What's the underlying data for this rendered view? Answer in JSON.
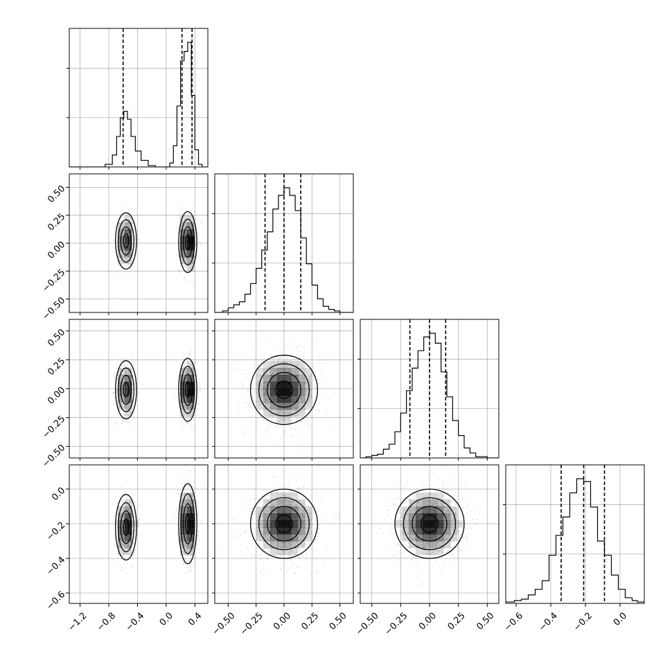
{
  "chart_data": {
    "type": "corner",
    "title": "",
    "n_params": 4,
    "params": [
      {
        "name": "",
        "range": [
          -1.35,
          0.58
        ],
        "ticks": [
          -1.2,
          -0.8,
          -0.4,
          0.0,
          0.4
        ],
        "tick_labels": [
          "−1.2",
          "−0.8",
          "−0.4",
          "0.0",
          "0.4"
        ],
        "quantiles": [
          -0.6,
          0.22,
          0.36
        ]
      },
      {
        "name": "",
        "range": [
          -0.62,
          0.62
        ],
        "ticks": [
          -0.5,
          -0.25,
          0.0,
          0.25,
          0.5
        ],
        "tick_labels": [
          "−0.50",
          "−0.25",
          "0.00",
          "0.25",
          "0.50"
        ],
        "quantiles": [
          -0.17,
          0.0,
          0.15
        ]
      },
      {
        "name": "",
        "range": [
          -0.6,
          0.6
        ],
        "ticks": [
          -0.5,
          -0.25,
          0.0,
          0.25,
          0.5
        ],
        "tick_labels": [
          "−0.50",
          "−0.25",
          "0.00",
          "0.25",
          "0.50"
        ],
        "quantiles": [
          -0.17,
          0.0,
          0.14
        ]
      },
      {
        "name": "",
        "range": [
          -0.66,
          0.14
        ],
        "ticks": [
          -0.6,
          -0.4,
          -0.2,
          0.0
        ],
        "tick_labels": [
          "−0.6",
          "−0.4",
          "−0.2",
          "0.0"
        ],
        "quantiles": [
          -0.34,
          -0.21,
          -0.09
        ]
      }
    ],
    "histograms": [
      {
        "param": 0,
        "bins": [
          -1.35,
          -1.25,
          -1.15,
          -1.05,
          -0.95,
          -0.85,
          -0.75,
          -0.69,
          -0.64,
          -0.59,
          -0.54,
          -0.49,
          -0.43,
          -0.35,
          -0.25,
          -0.15,
          -0.05,
          0.05,
          0.1,
          0.15,
          0.2,
          0.25,
          0.3,
          0.35,
          0.4,
          0.45,
          0.5,
          0.58
        ],
        "counts": [
          0,
          0,
          0,
          0,
          0,
          0.02,
          0.09,
          0.23,
          0.37,
          0.42,
          0.36,
          0.23,
          0.12,
          0.05,
          0.01,
          0,
          0,
          0.03,
          0.16,
          0.46,
          0.8,
          0.87,
          0.94,
          0.54,
          0.13,
          0.02,
          0
        ]
      },
      {
        "param": 1,
        "bins": [
          -0.62,
          -0.55,
          -0.5,
          -0.45,
          -0.4,
          -0.35,
          -0.3,
          -0.25,
          -0.2,
          -0.15,
          -0.1,
          -0.05,
          0.0,
          0.05,
          0.1,
          0.15,
          0.2,
          0.25,
          0.3,
          0.35,
          0.4,
          0.45,
          0.5,
          0.62
        ],
        "counts": [
          0.0,
          0.01,
          0.03,
          0.05,
          0.07,
          0.12,
          0.19,
          0.29,
          0.41,
          0.53,
          0.68,
          0.77,
          0.82,
          0.77,
          0.67,
          0.49,
          0.32,
          0.18,
          0.09,
          0.04,
          0.02,
          0.01,
          0.0
        ]
      },
      {
        "param": 2,
        "bins": [
          -0.6,
          -0.55,
          -0.5,
          -0.45,
          -0.4,
          -0.35,
          -0.3,
          -0.25,
          -0.2,
          -0.15,
          -0.1,
          -0.05,
          0.0,
          0.05,
          0.1,
          0.15,
          0.2,
          0.25,
          0.3,
          0.35,
          0.4,
          0.45,
          0.5,
          0.6
        ],
        "counts": [
          0.0,
          0.01,
          0.02,
          0.03,
          0.07,
          0.11,
          0.21,
          0.36,
          0.54,
          0.72,
          0.86,
          0.97,
          1.0,
          0.92,
          0.69,
          0.49,
          0.3,
          0.18,
          0.08,
          0.04,
          0.01,
          0.01,
          0.0
        ]
      },
      {
        "param": 3,
        "bins": [
          -0.66,
          -0.61,
          -0.57,
          -0.53,
          -0.49,
          -0.45,
          -0.41,
          -0.37,
          -0.33,
          -0.29,
          -0.25,
          -0.21,
          -0.17,
          -0.13,
          -0.09,
          -0.05,
          -0.01,
          0.03,
          0.07,
          0.1,
          0.14
        ],
        "counts": [
          0.01,
          0.02,
          0.03,
          0.06,
          0.1,
          0.16,
          0.34,
          0.48,
          0.61,
          0.78,
          0.88,
          0.86,
          0.68,
          0.44,
          0.34,
          0.2,
          0.1,
          0.04,
          0.02,
          0.01
        ]
      }
    ],
    "pairs": [
      {
        "x": 0,
        "y": 1,
        "components": [
          {
            "cx": -0.56,
            "cy": 0.02,
            "sx": 0.07,
            "sy": 0.12,
            "rho": 0.0,
            "w": 0.45
          },
          {
            "cx": 0.3,
            "cy": 0.01,
            "sx": 0.06,
            "sy": 0.13,
            "rho": 0.0,
            "w": 0.55
          }
        ]
      },
      {
        "x": 0,
        "y": 2,
        "components": [
          {
            "cx": -0.56,
            "cy": -0.01,
            "sx": 0.07,
            "sy": 0.12,
            "rho": 0.0,
            "w": 0.45
          },
          {
            "cx": 0.3,
            "cy": -0.01,
            "sx": 0.06,
            "sy": 0.13,
            "rho": 0.0,
            "w": 0.55
          }
        ]
      },
      {
        "x": 0,
        "y": 3,
        "components": [
          {
            "cx": -0.56,
            "cy": -0.22,
            "sx": 0.07,
            "sy": 0.09,
            "rho": 0.1,
            "w": 0.45
          },
          {
            "cx": 0.3,
            "cy": -0.2,
            "sx": 0.06,
            "sy": 0.11,
            "rho": 0.0,
            "w": 0.55
          }
        ]
      },
      {
        "x": 1,
        "y": 2,
        "components": [
          {
            "cx": 0.0,
            "cy": -0.01,
            "sx": 0.15,
            "sy": 0.15,
            "rho": 0.0,
            "w": 1.0
          }
        ]
      },
      {
        "x": 1,
        "y": 3,
        "components": [
          {
            "cx": 0.0,
            "cy": -0.2,
            "sx": 0.15,
            "sy": 0.1,
            "rho": 0.0,
            "w": 1.0
          }
        ]
      },
      {
        "x": 2,
        "y": 3,
        "components": [
          {
            "cx": 0.0,
            "cy": -0.2,
            "sx": 0.15,
            "sy": 0.1,
            "rho": 0.0,
            "w": 1.0
          }
        ]
      }
    ],
    "contour_levels": [
      0.5,
      1.0,
      1.5,
      2.0
    ],
    "grid": true,
    "legend": "none",
    "colors": {
      "line": "#000000",
      "grid": "#b0b0b0",
      "density": "#000000",
      "points": "#9a9a9a"
    }
  }
}
